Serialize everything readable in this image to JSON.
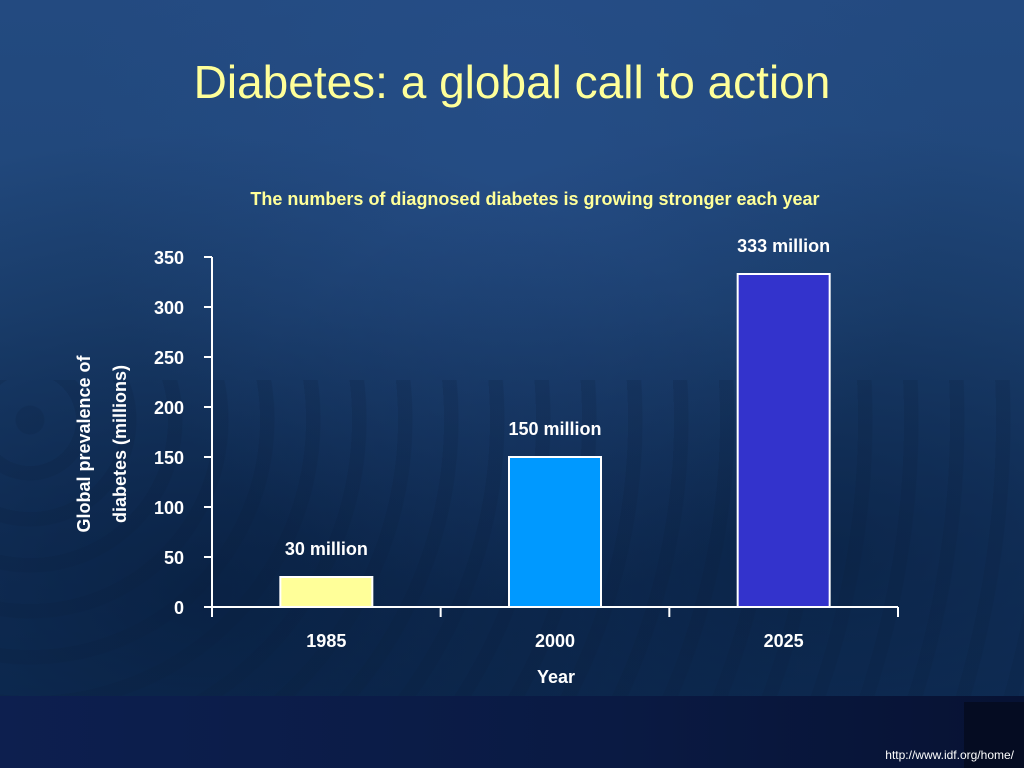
{
  "slide": {
    "title": "Diabetes: a global call to action",
    "footer_url": "http://www.idf.org/home/"
  },
  "chart_data": {
    "type": "bar",
    "title": "The numbers of diagnosed diabetes is growing stronger each year",
    "categories": [
      "1985",
      "2000",
      "2025"
    ],
    "values": [
      30,
      150,
      333
    ],
    "data_labels": [
      "30 million",
      "150 million",
      "333 million"
    ],
    "bar_colors": [
      "#ffff99",
      "#0099ff",
      "#3333cc"
    ],
    "ylabel": "Global prevalence of diabetes (millions)",
    "xlabel": "Year",
    "ylim": [
      0,
      350
    ],
    "yticks": [
      0,
      50,
      100,
      150,
      200,
      250,
      300,
      350
    ],
    "grid": false
  },
  "colors": {
    "title": "#ffff99",
    "axis": "#ffffff",
    "background": "#1f4678"
  }
}
